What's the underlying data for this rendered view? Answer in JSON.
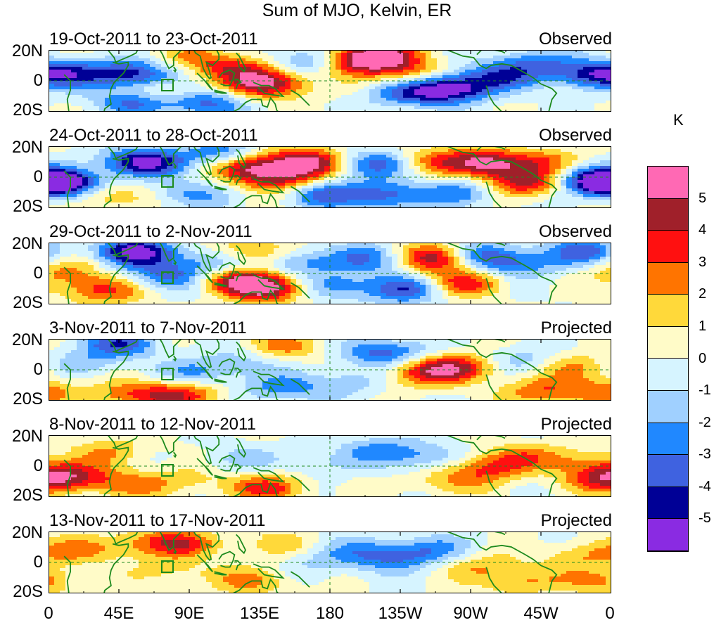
{
  "title": "Sum of MJO, Kelvin, ER",
  "units": "K",
  "panels": [
    {
      "date": "19-Oct-2011 to 23-Oct-2011",
      "kind": "Observed"
    },
    {
      "date": "24-Oct-2011 to 28-Oct-2011",
      "kind": "Observed"
    },
    {
      "date": "29-Oct-2011 to 2-Nov-2011",
      "kind": "Observed"
    },
    {
      "date": "3-Nov-2011 to 7-Nov-2011",
      "kind": "Projected"
    },
    {
      "date": "8-Nov-2011 to 12-Nov-2011",
      "kind": "Projected"
    },
    {
      "date": "13-Nov-2011 to 17-Nov-2011",
      "kind": "Projected"
    }
  ],
  "lat_labels": [
    "20N",
    "0",
    "20S"
  ],
  "lon_labels": [
    "0",
    "45E",
    "90E",
    "135E",
    "180",
    "135W",
    "90W",
    "45W",
    "0"
  ],
  "colorbar": {
    "levels": [
      "5",
      "4",
      "3",
      "2",
      "1",
      "0",
      "-1",
      "-2",
      "-3",
      "-4",
      "-5"
    ],
    "colors": [
      "#ff69b4",
      "#a0202a",
      "#ff1010",
      "#ff7400",
      "#ffd93a",
      "#fffbc8",
      "#d6f4ff",
      "#a0d0ff",
      "#2088ff",
      "#3f62e0",
      "#000096",
      "#8a2be2"
    ]
  },
  "colors": {
    "land": "#1d8a1d",
    "dash": "#1d8a1d"
  }
}
